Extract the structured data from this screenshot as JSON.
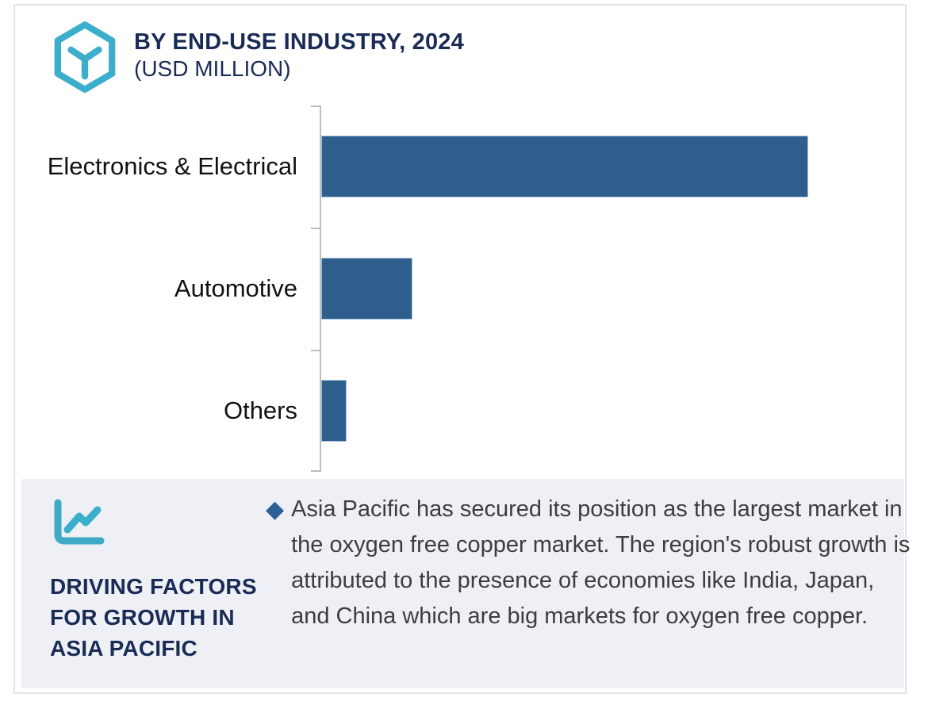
{
  "header": {
    "title": "BY END-USE INDUSTRY, 2024",
    "subtitle": "(USD MILLION)",
    "icon": "hexagon-cube-icon"
  },
  "chart_data": {
    "type": "bar",
    "orientation": "horizontal",
    "title": "BY END-USE INDUSTRY, 2024 (USD MILLION)",
    "categories": [
      "Electronics & Electrical",
      "Automotive",
      "Others"
    ],
    "values": [
      100,
      18.7,
      5.2
    ],
    "values_note": "axis has no numeric tick labels; values are estimated relative bar lengths with largest bar = 100",
    "xlabel": "",
    "ylabel": "",
    "grid": false,
    "legend": false,
    "bar_color": "#2e5e8c",
    "axis_color": "#bdbdbd"
  },
  "insights": {
    "icon": "line-chart-icon",
    "heading": "DRIVING FACTORS FOR GROWTH IN ASIA PACIFIC",
    "bullet_marker": "◆",
    "bullets": [
      "Asia Pacific has secured its position as the largest market in the oxygen free copper market. The region's robust growth is attributed to the presence of economies like India, Japan, and China which are big markets for oxygen free copper."
    ]
  },
  "colors": {
    "accent_teal": "#3aaecb",
    "navy": "#1a2b55",
    "bar_blue": "#2e5e8c",
    "panel_bg": "#eef0f5",
    "bullet_blue": "#2d5f94",
    "frame_border": "#e4e5eb"
  }
}
